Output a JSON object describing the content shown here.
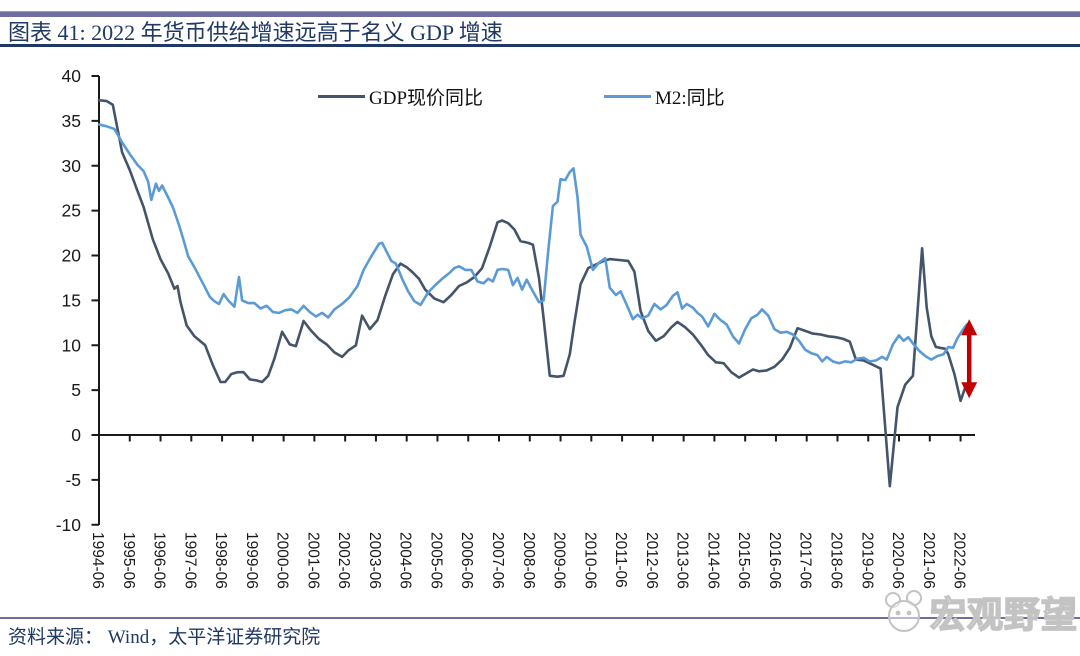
{
  "header": {
    "title": "图表 41:  2022 年货币供给增速远高于名义 GDP 增速"
  },
  "footer": {
    "source": "资料来源：  Wind，太平洋证券研究院"
  },
  "watermark": {
    "text": "宏观野望"
  },
  "chart_data": {
    "type": "line",
    "title": "2022 年货币供给增速远高于名义 GDP 增速",
    "xlabel": "",
    "ylabel": "",
    "grid": false,
    "legend_position": "top-center",
    "y_range": [
      -10,
      40
    ],
    "y_ticks": [
      -10,
      -5,
      0,
      5,
      10,
      15,
      20,
      25,
      30,
      35,
      40
    ],
    "x_range": [
      1994.5,
      2022.75
    ],
    "x_tick_years": [
      1994.5,
      1995.5,
      1996.5,
      1997.5,
      1998.5,
      1999.5,
      2000.5,
      2001.5,
      2002.5,
      2003.5,
      2004.5,
      2005.5,
      2006.5,
      2007.5,
      2008.5,
      2009.5,
      2010.5,
      2011.5,
      2012.5,
      2013.5,
      2014.5,
      2015.5,
      2016.5,
      2017.5,
      2018.5,
      2019.5,
      2020.5,
      2021.5,
      2022.5
    ],
    "x_tick_labels": [
      "1994-06",
      "1995-06",
      "1996-06",
      "1997-06",
      "1998-06",
      "1999-06",
      "2000-06",
      "2001-06",
      "2002-06",
      "2003-06",
      "2004-06",
      "2005-06",
      "2006-06",
      "2007-06",
      "2008-06",
      "2009-06",
      "2010-06",
      "2011-06",
      "2012-06",
      "2013-06",
      "2014-06",
      "2015-06",
      "2016-06",
      "2017-06",
      "2018-06",
      "2019-06",
      "2020-06",
      "2021-06",
      "2022-06"
    ],
    "axis_color": "#1a1a1a",
    "series": [
      {
        "name": "GDP现价同比",
        "color": "#44546A",
        "points": [
          [
            1994.5,
            37.3
          ],
          [
            1994.75,
            37.2
          ],
          [
            1994.95,
            36.8
          ],
          [
            1995.25,
            31.5
          ],
          [
            1995.5,
            29.5
          ],
          [
            1995.75,
            27.2
          ],
          [
            1995.95,
            25.4
          ],
          [
            1996.25,
            21.8
          ],
          [
            1996.5,
            19.6
          ],
          [
            1996.75,
            18.0
          ],
          [
            1996.95,
            16.3
          ],
          [
            1997.05,
            16.6
          ],
          [
            1997.15,
            14.8
          ],
          [
            1997.35,
            12.2
          ],
          [
            1997.6,
            11.0
          ],
          [
            1997.95,
            10.0
          ],
          [
            1998.2,
            7.8
          ],
          [
            1998.45,
            5.9
          ],
          [
            1998.6,
            5.9
          ],
          [
            1998.8,
            6.8
          ],
          [
            1999.0,
            7.0
          ],
          [
            1999.2,
            7.0
          ],
          [
            1999.4,
            6.2
          ],
          [
            1999.6,
            6.1
          ],
          [
            1999.8,
            5.9
          ],
          [
            2000.0,
            6.6
          ],
          [
            2000.2,
            8.5
          ],
          [
            2000.45,
            11.5
          ],
          [
            2000.7,
            10.1
          ],
          [
            2000.9,
            9.9
          ],
          [
            2001.15,
            12.7
          ],
          [
            2001.4,
            11.6
          ],
          [
            2001.65,
            10.7
          ],
          [
            2001.9,
            10.1
          ],
          [
            2002.15,
            9.2
          ],
          [
            2002.4,
            8.7
          ],
          [
            2002.6,
            9.4
          ],
          [
            2002.85,
            10.0
          ],
          [
            2003.05,
            13.3
          ],
          [
            2003.3,
            11.8
          ],
          [
            2003.55,
            12.8
          ],
          [
            2003.8,
            15.5
          ],
          [
            2004.05,
            17.9
          ],
          [
            2004.3,
            19.1
          ],
          [
            2004.5,
            18.7
          ],
          [
            2004.7,
            18.1
          ],
          [
            2004.9,
            17.4
          ],
          [
            2005.1,
            16.2
          ],
          [
            2005.4,
            15.2
          ],
          [
            2005.7,
            14.8
          ],
          [
            2005.95,
            15.6
          ],
          [
            2006.2,
            16.6
          ],
          [
            2006.45,
            17.0
          ],
          [
            2006.7,
            17.6
          ],
          [
            2006.95,
            18.6
          ],
          [
            2007.2,
            21.0
          ],
          [
            2007.45,
            23.7
          ],
          [
            2007.6,
            23.9
          ],
          [
            2007.8,
            23.6
          ],
          [
            2008.0,
            22.9
          ],
          [
            2008.2,
            21.6
          ],
          [
            2008.45,
            21.4
          ],
          [
            2008.6,
            21.2
          ],
          [
            2008.8,
            17.5
          ],
          [
            2008.95,
            13.0
          ],
          [
            2009.15,
            6.6
          ],
          [
            2009.4,
            6.5
          ],
          [
            2009.6,
            6.6
          ],
          [
            2009.8,
            9.0
          ],
          [
            2009.95,
            12.5
          ],
          [
            2010.15,
            16.8
          ],
          [
            2010.4,
            18.6
          ],
          [
            2010.65,
            19.0
          ],
          [
            2010.9,
            19.4
          ],
          [
            2011.1,
            19.6
          ],
          [
            2011.4,
            19.5
          ],
          [
            2011.7,
            19.4
          ],
          [
            2011.9,
            18.2
          ],
          [
            2012.1,
            13.8
          ],
          [
            2012.35,
            11.6
          ],
          [
            2012.6,
            10.5
          ],
          [
            2012.85,
            11.0
          ],
          [
            2013.1,
            12.0
          ],
          [
            2013.3,
            12.6
          ],
          [
            2013.55,
            12.0
          ],
          [
            2013.8,
            11.2
          ],
          [
            2014.05,
            10.1
          ],
          [
            2014.3,
            8.9
          ],
          [
            2014.55,
            8.1
          ],
          [
            2014.8,
            8.0
          ],
          [
            2015.05,
            7.0
          ],
          [
            2015.3,
            6.4
          ],
          [
            2015.55,
            6.9
          ],
          [
            2015.75,
            7.3
          ],
          [
            2015.95,
            7.1
          ],
          [
            2016.2,
            7.2
          ],
          [
            2016.45,
            7.6
          ],
          [
            2016.7,
            8.4
          ],
          [
            2016.95,
            9.7
          ],
          [
            2017.2,
            11.9
          ],
          [
            2017.45,
            11.6
          ],
          [
            2017.7,
            11.3
          ],
          [
            2017.95,
            11.2
          ],
          [
            2018.2,
            11.0
          ],
          [
            2018.45,
            10.9
          ],
          [
            2018.7,
            10.7
          ],
          [
            2018.9,
            10.4
          ],
          [
            2019.1,
            8.4
          ],
          [
            2019.35,
            8.3
          ],
          [
            2019.6,
            7.9
          ],
          [
            2019.9,
            7.4
          ],
          [
            2020.2,
            -5.7
          ],
          [
            2020.45,
            3.1
          ],
          [
            2020.7,
            5.6
          ],
          [
            2020.95,
            6.6
          ],
          [
            2021.25,
            20.8
          ],
          [
            2021.4,
            14.2
          ],
          [
            2021.55,
            11.0
          ],
          [
            2021.7,
            9.8
          ],
          [
            2022.0,
            9.6
          ],
          [
            2022.1,
            9.0
          ],
          [
            2022.3,
            6.8
          ],
          [
            2022.5,
            3.8
          ],
          [
            2022.67,
            5.5
          ]
        ]
      },
      {
        "name": "M2:同比",
        "color": "#5B9BD5",
        "points": [
          [
            1994.5,
            34.6
          ],
          [
            1994.75,
            34.4
          ],
          [
            1995.0,
            34.1
          ],
          [
            1995.25,
            32.6
          ],
          [
            1995.5,
            31.3
          ],
          [
            1995.75,
            30.1
          ],
          [
            1995.95,
            29.4
          ],
          [
            1996.1,
            28.2
          ],
          [
            1996.2,
            26.2
          ],
          [
            1996.35,
            28.0
          ],
          [
            1996.45,
            27.2
          ],
          [
            1996.55,
            27.8
          ],
          [
            1996.7,
            26.8
          ],
          [
            1996.9,
            25.4
          ],
          [
            1997.1,
            23.4
          ],
          [
            1997.25,
            21.7
          ],
          [
            1997.4,
            19.9
          ],
          [
            1997.6,
            18.7
          ],
          [
            1997.8,
            17.4
          ],
          [
            1997.95,
            16.4
          ],
          [
            1998.1,
            15.4
          ],
          [
            1998.25,
            14.9
          ],
          [
            1998.4,
            14.6
          ],
          [
            1998.55,
            15.7
          ],
          [
            1998.7,
            15.0
          ],
          [
            1998.9,
            14.3
          ],
          [
            1999.05,
            17.6
          ],
          [
            1999.15,
            15.0
          ],
          [
            1999.35,
            14.7
          ],
          [
            1999.55,
            14.7
          ],
          [
            1999.75,
            14.1
          ],
          [
            1999.95,
            14.4
          ],
          [
            2000.15,
            13.7
          ],
          [
            2000.35,
            13.6
          ],
          [
            2000.55,
            13.9
          ],
          [
            2000.75,
            14.0
          ],
          [
            2000.95,
            13.6
          ],
          [
            2001.15,
            14.4
          ],
          [
            2001.35,
            13.7
          ],
          [
            2001.55,
            13.2
          ],
          [
            2001.75,
            13.6
          ],
          [
            2001.95,
            13.1
          ],
          [
            2002.15,
            14.0
          ],
          [
            2002.4,
            14.6
          ],
          [
            2002.65,
            15.4
          ],
          [
            2002.9,
            16.6
          ],
          [
            2003.1,
            18.4
          ],
          [
            2003.35,
            19.9
          ],
          [
            2003.6,
            21.3
          ],
          [
            2003.7,
            21.4
          ],
          [
            2003.85,
            20.4
          ],
          [
            2004.0,
            19.4
          ],
          [
            2004.15,
            19.1
          ],
          [
            2004.35,
            17.4
          ],
          [
            2004.55,
            16.0
          ],
          [
            2004.75,
            14.9
          ],
          [
            2004.95,
            14.5
          ],
          [
            2005.2,
            15.9
          ],
          [
            2005.4,
            16.6
          ],
          [
            2005.65,
            17.4
          ],
          [
            2005.9,
            18.1
          ],
          [
            2006.05,
            18.6
          ],
          [
            2006.2,
            18.8
          ],
          [
            2006.4,
            18.4
          ],
          [
            2006.6,
            18.4
          ],
          [
            2006.8,
            17.1
          ],
          [
            2007.0,
            16.9
          ],
          [
            2007.15,
            17.4
          ],
          [
            2007.3,
            17.1
          ],
          [
            2007.45,
            18.4
          ],
          [
            2007.6,
            18.5
          ],
          [
            2007.8,
            18.4
          ],
          [
            2007.95,
            16.7
          ],
          [
            2008.1,
            17.5
          ],
          [
            2008.25,
            16.2
          ],
          [
            2008.4,
            17.3
          ],
          [
            2008.6,
            16.0
          ],
          [
            2008.8,
            14.8
          ],
          [
            2008.95,
            15.0
          ],
          [
            2009.1,
            20.5
          ],
          [
            2009.25,
            25.5
          ],
          [
            2009.4,
            26.0
          ],
          [
            2009.5,
            28.5
          ],
          [
            2009.65,
            28.4
          ],
          [
            2009.8,
            29.3
          ],
          [
            2009.92,
            29.7
          ],
          [
            2010.05,
            26.5
          ],
          [
            2010.15,
            22.3
          ],
          [
            2010.35,
            21.0
          ],
          [
            2010.55,
            18.4
          ],
          [
            2010.75,
            19.2
          ],
          [
            2010.95,
            19.7
          ],
          [
            2011.1,
            16.4
          ],
          [
            2011.3,
            15.6
          ],
          [
            2011.45,
            16.0
          ],
          [
            2011.65,
            14.5
          ],
          [
            2011.85,
            12.9
          ],
          [
            2012.0,
            13.4
          ],
          [
            2012.15,
            13.0
          ],
          [
            2012.35,
            13.3
          ],
          [
            2012.55,
            14.6
          ],
          [
            2012.75,
            14.0
          ],
          [
            2012.95,
            14.5
          ],
          [
            2013.15,
            15.5
          ],
          [
            2013.3,
            15.9
          ],
          [
            2013.45,
            14.1
          ],
          [
            2013.6,
            14.6
          ],
          [
            2013.8,
            14.2
          ],
          [
            2013.95,
            13.6
          ],
          [
            2014.1,
            13.2
          ],
          [
            2014.3,
            12.1
          ],
          [
            2014.5,
            13.5
          ],
          [
            2014.7,
            12.8
          ],
          [
            2014.9,
            12.3
          ],
          [
            2015.1,
            11.0
          ],
          [
            2015.3,
            10.2
          ],
          [
            2015.5,
            11.8
          ],
          [
            2015.7,
            13.0
          ],
          [
            2015.9,
            13.4
          ],
          [
            2016.05,
            14.0
          ],
          [
            2016.25,
            13.3
          ],
          [
            2016.45,
            11.8
          ],
          [
            2016.65,
            11.4
          ],
          [
            2016.85,
            11.5
          ],
          [
            2017.05,
            11.2
          ],
          [
            2017.25,
            10.5
          ],
          [
            2017.45,
            9.5
          ],
          [
            2017.65,
            9.1
          ],
          [
            2017.85,
            8.9
          ],
          [
            2018.0,
            8.2
          ],
          [
            2018.15,
            8.7
          ],
          [
            2018.35,
            8.2
          ],
          [
            2018.55,
            8.0
          ],
          [
            2018.75,
            8.2
          ],
          [
            2018.95,
            8.1
          ],
          [
            2019.15,
            8.5
          ],
          [
            2019.35,
            8.6
          ],
          [
            2019.55,
            8.2
          ],
          [
            2019.75,
            8.3
          ],
          [
            2019.95,
            8.7
          ],
          [
            2020.1,
            8.4
          ],
          [
            2020.3,
            10.1
          ],
          [
            2020.5,
            11.1
          ],
          [
            2020.65,
            10.5
          ],
          [
            2020.8,
            10.9
          ],
          [
            2020.95,
            10.2
          ],
          [
            2021.15,
            9.4
          ],
          [
            2021.35,
            8.8
          ],
          [
            2021.55,
            8.4
          ],
          [
            2021.75,
            8.8
          ],
          [
            2021.95,
            9.0
          ],
          [
            2022.1,
            9.8
          ],
          [
            2022.25,
            9.7
          ],
          [
            2022.4,
            10.8
          ],
          [
            2022.55,
            11.6
          ],
          [
            2022.7,
            12.3
          ]
        ]
      }
    ],
    "annotation": {
      "type": "double-headed-arrow",
      "x": 2022.78,
      "value_from": 4.1,
      "value_to": 12.9,
      "color": "#C00000",
      "meaning": "gap between M2 growth and nominal GDP growth in 2022"
    }
  }
}
